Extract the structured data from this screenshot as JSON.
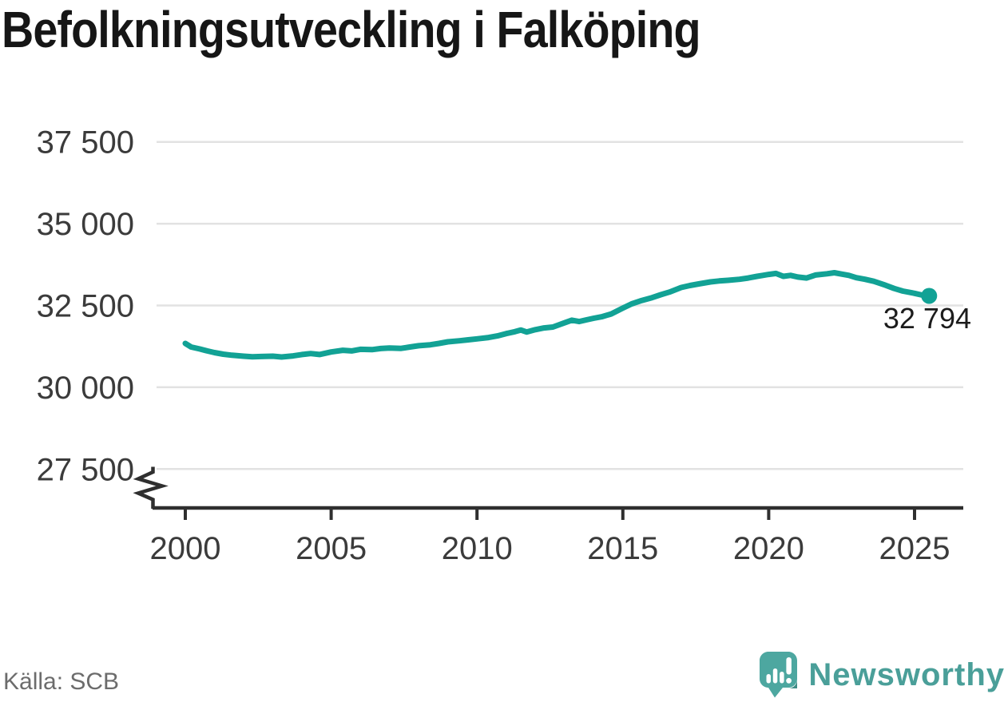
{
  "title": "Befolkningsutveckling i Falköping",
  "source": "Källa: SCB",
  "branding": {
    "wordmark": "Newsworthy"
  },
  "colors": {
    "background": "#FFFFFF",
    "line": "#12A295",
    "grid": "#E2E2E2",
    "axis": "#2F2F2F",
    "tick_text": "#3B3B3B",
    "title_text": "#161616",
    "source_text": "#6C6C6C",
    "end_label_text": "#1C1C1C",
    "logo_teal": "#4DA7A0",
    "logo_teal_dark": "#3F8C86",
    "wordmark_teal": "#4A9F99"
  },
  "chart_data": {
    "type": "line",
    "title": "Befolkningsutveckling i Falköping",
    "xlabel": "",
    "ylabel": "",
    "legend": "none",
    "grid": "horizontal",
    "broken_y_axis": true,
    "x_axis": {
      "tick_values": [
        2000,
        2005,
        2010,
        2015,
        2020,
        2025
      ],
      "tick_labels": [
        "2000",
        "2005",
        "2010",
        "2015",
        "2020",
        "2025"
      ],
      "range": [
        1999.85,
        2026.7
      ]
    },
    "y_axis": {
      "tick_values": [
        27500,
        30000,
        32500,
        35000,
        37500
      ],
      "tick_labels": [
        "27 500",
        "30 000",
        "32 500",
        "35 000",
        "37 500"
      ],
      "range": [
        27500,
        37500
      ]
    },
    "series": [
      {
        "end_label": "32 794",
        "end_value": 32794,
        "end_x": 2025.5,
        "points": [
          [
            2000.0,
            31340
          ],
          [
            2000.2,
            31230
          ],
          [
            2000.5,
            31170
          ],
          [
            2000.75,
            31110
          ],
          [
            2001.0,
            31060
          ],
          [
            2001.3,
            31010
          ],
          [
            2001.6,
            30980
          ],
          [
            2002.0,
            30950
          ],
          [
            2002.3,
            30930
          ],
          [
            2002.6,
            30940
          ],
          [
            2003.0,
            30950
          ],
          [
            2003.3,
            30925
          ],
          [
            2003.7,
            30960
          ],
          [
            2004.0,
            31000
          ],
          [
            2004.3,
            31030
          ],
          [
            2004.6,
            31000
          ],
          [
            2005.0,
            31080
          ],
          [
            2005.4,
            31130
          ],
          [
            2005.7,
            31110
          ],
          [
            2006.0,
            31160
          ],
          [
            2006.4,
            31150
          ],
          [
            2006.7,
            31185
          ],
          [
            2007.0,
            31200
          ],
          [
            2007.4,
            31190
          ],
          [
            2007.7,
            31230
          ],
          [
            2008.0,
            31270
          ],
          [
            2008.4,
            31300
          ],
          [
            2008.7,
            31340
          ],
          [
            2009.0,
            31390
          ],
          [
            2009.4,
            31420
          ],
          [
            2009.7,
            31450
          ],
          [
            2010.0,
            31480
          ],
          [
            2010.4,
            31520
          ],
          [
            2010.7,
            31570
          ],
          [
            2011.0,
            31640
          ],
          [
            2011.3,
            31700
          ],
          [
            2011.5,
            31750
          ],
          [
            2011.7,
            31690
          ],
          [
            2012.0,
            31760
          ],
          [
            2012.3,
            31815
          ],
          [
            2012.6,
            31840
          ],
          [
            2013.0,
            31970
          ],
          [
            2013.25,
            32050
          ],
          [
            2013.5,
            32010
          ],
          [
            2013.75,
            32060
          ],
          [
            2014.0,
            32110
          ],
          [
            2014.3,
            32160
          ],
          [
            2014.6,
            32240
          ],
          [
            2015.0,
            32420
          ],
          [
            2015.3,
            32550
          ],
          [
            2015.6,
            32640
          ],
          [
            2016.0,
            32740
          ],
          [
            2016.3,
            32830
          ],
          [
            2016.6,
            32910
          ],
          [
            2017.0,
            33050
          ],
          [
            2017.3,
            33110
          ],
          [
            2017.6,
            33160
          ],
          [
            2018.0,
            33220
          ],
          [
            2018.3,
            33250
          ],
          [
            2018.6,
            33270
          ],
          [
            2019.0,
            33300
          ],
          [
            2019.3,
            33340
          ],
          [
            2019.6,
            33390
          ],
          [
            2019.8,
            33420
          ],
          [
            2020.0,
            33450
          ],
          [
            2020.25,
            33480
          ],
          [
            2020.5,
            33390
          ],
          [
            2020.75,
            33420
          ],
          [
            2021.0,
            33370
          ],
          [
            2021.3,
            33340
          ],
          [
            2021.6,
            33430
          ],
          [
            2022.0,
            33470
          ],
          [
            2022.25,
            33500
          ],
          [
            2022.5,
            33460
          ],
          [
            2022.75,
            33420
          ],
          [
            2023.0,
            33350
          ],
          [
            2023.3,
            33300
          ],
          [
            2023.6,
            33240
          ],
          [
            2024.0,
            33120
          ],
          [
            2024.3,
            33020
          ],
          [
            2024.6,
            32940
          ],
          [
            2025.0,
            32870
          ],
          [
            2025.25,
            32820
          ],
          [
            2025.5,
            32794
          ]
        ]
      }
    ]
  }
}
